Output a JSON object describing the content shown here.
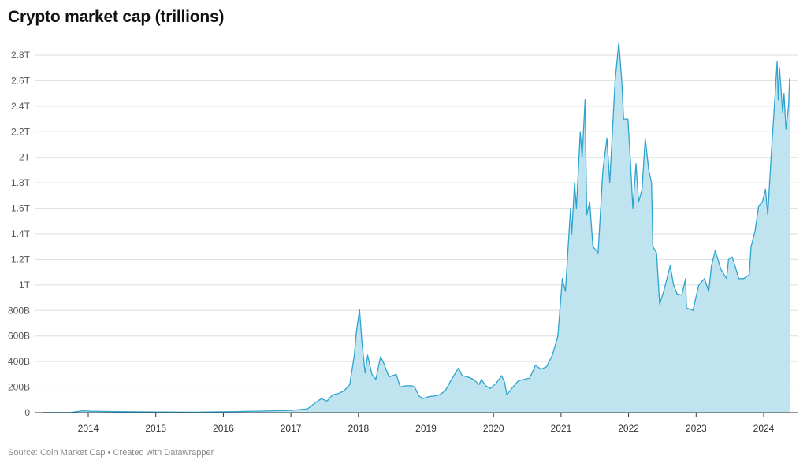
{
  "chart_data": {
    "type": "area",
    "title": "Crypto market cap (trillions)",
    "xlabel": "",
    "ylabel": "",
    "ylim": [
      0,
      2.8
    ],
    "xlim": [
      "2013-04",
      "2024-05"
    ],
    "grid": true,
    "colors": {
      "line": "#2fa4cf",
      "fill": "#bfe3ef",
      "grid": "#dddddd",
      "baseline": "#333333"
    },
    "y_ticks": [
      {
        "value": 0,
        "label": "0"
      },
      {
        "value": 0.2,
        "label": "200B"
      },
      {
        "value": 0.4,
        "label": "400B"
      },
      {
        "value": 0.6,
        "label": "600B"
      },
      {
        "value": 0.8,
        "label": "800B"
      },
      {
        "value": 1.0,
        "label": "1T"
      },
      {
        "value": 1.2,
        "label": "1.2T"
      },
      {
        "value": 1.4,
        "label": "1.4T"
      },
      {
        "value": 1.6,
        "label": "1.6T"
      },
      {
        "value": 1.8,
        "label": "1.8T"
      },
      {
        "value": 2.0,
        "label": "2T"
      },
      {
        "value": 2.2,
        "label": "2.2T"
      },
      {
        "value": 2.4,
        "label": "2.4T"
      },
      {
        "value": 2.6,
        "label": "2.6T"
      },
      {
        "value": 2.8,
        "label": "2.8T"
      }
    ],
    "x_ticks": [
      "2014",
      "2015",
      "2016",
      "2017",
      "2018",
      "2019",
      "2020",
      "2021",
      "2022",
      "2023",
      "2024"
    ],
    "units": "trillions USD",
    "points": [
      [
        "2013-04-28",
        0.001
      ],
      [
        "2013-10-01",
        0.002
      ],
      [
        "2013-12-01",
        0.015
      ],
      [
        "2014-01-15",
        0.011
      ],
      [
        "2014-06-01",
        0.008
      ],
      [
        "2015-01-01",
        0.005
      ],
      [
        "2015-08-01",
        0.004
      ],
      [
        "2016-01-01",
        0.007
      ],
      [
        "2016-07-01",
        0.012
      ],
      [
        "2017-01-01",
        0.018
      ],
      [
        "2017-04-01",
        0.03
      ],
      [
        "2017-05-15",
        0.08
      ],
      [
        "2017-06-15",
        0.11
      ],
      [
        "2017-07-15",
        0.09
      ],
      [
        "2017-08-15",
        0.14
      ],
      [
        "2017-09-15",
        0.15
      ],
      [
        "2017-10-15",
        0.17
      ],
      [
        "2017-11-15",
        0.22
      ],
      [
        "2017-12-10",
        0.45
      ],
      [
        "2017-12-20",
        0.62
      ],
      [
        "2018-01-07",
        0.81
      ],
      [
        "2018-01-20",
        0.55
      ],
      [
        "2018-02-06",
        0.31
      ],
      [
        "2018-02-20",
        0.45
      ],
      [
        "2018-03-15",
        0.3
      ],
      [
        "2018-04-05",
        0.26
      ],
      [
        "2018-05-01",
        0.44
      ],
      [
        "2018-05-20",
        0.38
      ],
      [
        "2018-06-15",
        0.28
      ],
      [
        "2018-07-25",
        0.3
      ],
      [
        "2018-08-15",
        0.2
      ],
      [
        "2018-09-15",
        0.21
      ],
      [
        "2018-10-15",
        0.21
      ],
      [
        "2018-11-01",
        0.2
      ],
      [
        "2018-11-25",
        0.13
      ],
      [
        "2018-12-15",
        0.11
      ],
      [
        "2019-01-15",
        0.125
      ],
      [
        "2019-02-15",
        0.13
      ],
      [
        "2019-03-15",
        0.14
      ],
      [
        "2019-04-15",
        0.17
      ],
      [
        "2019-05-15",
        0.25
      ],
      [
        "2019-06-26",
        0.35
      ],
      [
        "2019-07-15",
        0.29
      ],
      [
        "2019-08-15",
        0.28
      ],
      [
        "2019-09-15",
        0.26
      ],
      [
        "2019-10-15",
        0.22
      ],
      [
        "2019-10-28",
        0.26
      ],
      [
        "2019-11-20",
        0.21
      ],
      [
        "2019-12-15",
        0.19
      ],
      [
        "2020-01-15",
        0.23
      ],
      [
        "2020-02-14",
        0.29
      ],
      [
        "2020-03-01",
        0.24
      ],
      [
        "2020-03-13",
        0.14
      ],
      [
        "2020-04-15",
        0.2
      ],
      [
        "2020-05-15",
        0.25
      ],
      [
        "2020-06-15",
        0.26
      ],
      [
        "2020-07-15",
        0.27
      ],
      [
        "2020-08-15",
        0.37
      ],
      [
        "2020-09-15",
        0.34
      ],
      [
        "2020-10-15",
        0.36
      ],
      [
        "2020-11-15",
        0.45
      ],
      [
        "2020-12-15",
        0.6
      ],
      [
        "2021-01-08",
        1.05
      ],
      [
        "2021-01-25",
        0.95
      ],
      [
        "2021-02-21",
        1.6
      ],
      [
        "2021-02-28",
        1.4
      ],
      [
        "2021-03-15",
        1.8
      ],
      [
        "2021-03-25",
        1.6
      ],
      [
        "2021-04-15",
        2.2
      ],
      [
        "2021-04-25",
        2.0
      ],
      [
        "2021-05-11",
        2.45
      ],
      [
        "2021-05-20",
        1.55
      ],
      [
        "2021-06-05",
        1.65
      ],
      [
        "2021-06-22",
        1.3
      ],
      [
        "2021-07-20",
        1.25
      ],
      [
        "2021-08-15",
        1.9
      ],
      [
        "2021-09-06",
        2.15
      ],
      [
        "2021-09-21",
        1.8
      ],
      [
        "2021-10-20",
        2.6
      ],
      [
        "2021-11-09",
        2.9
      ],
      [
        "2021-11-25",
        2.6
      ],
      [
        "2021-12-05",
        2.3
      ],
      [
        "2021-12-28",
        2.3
      ],
      [
        "2022-01-10",
        2.0
      ],
      [
        "2022-01-24",
        1.6
      ],
      [
        "2022-02-10",
        1.95
      ],
      [
        "2022-02-24",
        1.65
      ],
      [
        "2022-03-15",
        1.75
      ],
      [
        "2022-04-01",
        2.15
      ],
      [
        "2022-04-20",
        1.9
      ],
      [
        "2022-05-05",
        1.8
      ],
      [
        "2022-05-12",
        1.3
      ],
      [
        "2022-06-01",
        1.25
      ],
      [
        "2022-06-18",
        0.85
      ],
      [
        "2022-07-10",
        0.95
      ],
      [
        "2022-08-14",
        1.15
      ],
      [
        "2022-09-01",
        1.0
      ],
      [
        "2022-09-20",
        0.93
      ],
      [
        "2022-10-15",
        0.92
      ],
      [
        "2022-11-05",
        1.05
      ],
      [
        "2022-11-10",
        0.82
      ],
      [
        "2022-12-15",
        0.8
      ],
      [
        "2023-01-15",
        1.0
      ],
      [
        "2023-02-15",
        1.05
      ],
      [
        "2023-03-10",
        0.95
      ],
      [
        "2023-03-25",
        1.15
      ],
      [
        "2023-04-14",
        1.27
      ],
      [
        "2023-05-15",
        1.12
      ],
      [
        "2023-06-15",
        1.05
      ],
      [
        "2023-06-25",
        1.2
      ],
      [
        "2023-07-15",
        1.22
      ],
      [
        "2023-08-20",
        1.05
      ],
      [
        "2023-09-15",
        1.05
      ],
      [
        "2023-10-15",
        1.08
      ],
      [
        "2023-10-25",
        1.3
      ],
      [
        "2023-11-15",
        1.42
      ],
      [
        "2023-12-05",
        1.62
      ],
      [
        "2023-12-25",
        1.65
      ],
      [
        "2024-01-11",
        1.75
      ],
      [
        "2024-01-23",
        1.55
      ],
      [
        "2024-02-10",
        2.0
      ],
      [
        "2024-02-28",
        2.4
      ],
      [
        "2024-03-14",
        2.75
      ],
      [
        "2024-03-20",
        2.45
      ],
      [
        "2024-03-27",
        2.7
      ],
      [
        "2024-04-13",
        2.35
      ],
      [
        "2024-04-20",
        2.5
      ],
      [
        "2024-05-01",
        2.22
      ],
      [
        "2024-05-15",
        2.4
      ],
      [
        "2024-05-21",
        2.62
      ]
    ]
  },
  "footer": {
    "source": "Source: Coin Market Cap",
    "credit": "• Created with Datawrapper"
  }
}
